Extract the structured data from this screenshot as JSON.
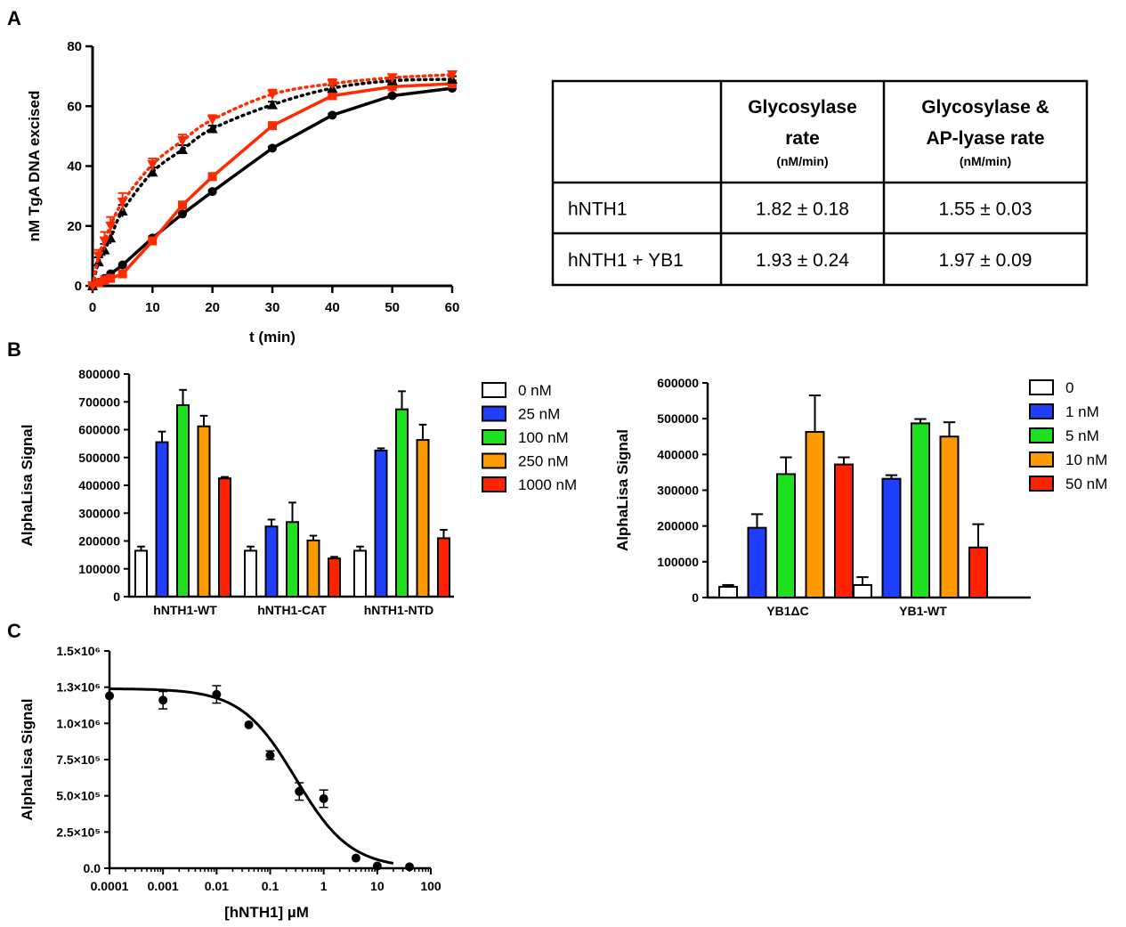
{
  "panels": {
    "a": "A",
    "b": "B",
    "c": "C"
  },
  "chart_data": [
    {
      "id": "A",
      "type": "line",
      "xlabel": "t (min)",
      "ylabel": "nM TgA DNA excised",
      "xlim": [
        0,
        60
      ],
      "ylim": [
        0,
        80
      ],
      "xticks": [
        "0",
        "10",
        "20",
        "30",
        "40",
        "50",
        "60"
      ],
      "yticks": [
        "0",
        "20",
        "40",
        "60",
        "80"
      ],
      "series": [
        {
          "color": "#000000",
          "marker": "circle",
          "style": "solid",
          "x": [
            0,
            1,
            2,
            3,
            5,
            10,
            15,
            20,
            30,
            40,
            50,
            60
          ],
          "y": [
            0,
            1.2,
            2.5,
            4,
            7,
            16,
            24,
            31.5,
            46,
            57,
            63.5,
            66
          ],
          "err": [
            0,
            0,
            0,
            0,
            0,
            0.5,
            0.5,
            0.5,
            0.5,
            0.5,
            0.5,
            0.5
          ]
        },
        {
          "color": "#ff2a00",
          "marker": "square",
          "style": "solid",
          "x": [
            0,
            1,
            2,
            3,
            5,
            10,
            15,
            20,
            30,
            40,
            50,
            60
          ],
          "y": [
            0,
            1,
            2,
            2.5,
            4,
            15,
            27,
            36.5,
            53.5,
            63.5,
            66.5,
            67.5
          ],
          "err": [
            0,
            0.5,
            0.5,
            0.5,
            1,
            1,
            1,
            1,
            1,
            1,
            1,
            1
          ]
        },
        {
          "color": "#000000",
          "marker": "triangle",
          "style": "dotted",
          "x": [
            0,
            1,
            2,
            3,
            5,
            10,
            15,
            20,
            30,
            40,
            50,
            60
          ],
          "y": [
            0,
            8,
            12,
            16,
            25,
            38,
            45.5,
            52.5,
            60.5,
            66,
            68.5,
            69
          ],
          "err": [
            0,
            1.5,
            2,
            2,
            2,
            1.5,
            1.5,
            1,
            1,
            1,
            1,
            1
          ]
        },
        {
          "color": "#ff2a00",
          "marker": "down-triangle",
          "style": "dotted",
          "x": [
            0,
            1,
            2,
            3,
            5,
            10,
            15,
            20,
            30,
            40,
            50,
            60
          ],
          "y": [
            0,
            10,
            15,
            20,
            28,
            40.5,
            48.5,
            55.5,
            64,
            67.5,
            69.5,
            70.5
          ],
          "err": [
            0,
            2,
            3,
            3,
            3,
            2,
            2,
            1.5,
            1.5,
            1.5,
            1,
            1
          ]
        }
      ]
    },
    {
      "id": "A-table",
      "type": "table",
      "columns": [
        "",
        "Glycosylase rate",
        "Glycosylase & AP-lyase rate"
      ],
      "header_lines": [
        [
          "Glycosylase",
          "rate"
        ],
        [
          "Glycosylase &",
          "AP-lyase rate"
        ]
      ],
      "units": [
        "(nM/min)",
        "(nM/min)"
      ],
      "rows": [
        [
          "hNTH1",
          "1.82 ± 0.18",
          "1.55 ± 0.03"
        ],
        [
          "hNTH1 + YB1",
          "1.93 ± 0.24",
          "1.97 ± 0.09"
        ]
      ]
    },
    {
      "id": "B-left",
      "type": "bar",
      "ylabel": "AlphaLisa Signal",
      "ylim": [
        0,
        800000
      ],
      "yticks": [
        "0",
        "100000",
        "200000",
        "300000",
        "400000",
        "500000",
        "600000",
        "700000",
        "800000"
      ],
      "categories": [
        "hNTH1-WT",
        "hNTH1-CAT",
        "hNTH1-NTD"
      ],
      "legend_position": "right",
      "series": [
        {
          "name": "0 nM",
          "color": "#ffffff",
          "values": [
            165000,
            165000,
            165000
          ],
          "err": [
            15000,
            15000,
            15000
          ]
        },
        {
          "name": "25 nM",
          "color": "#1f3fff",
          "values": [
            555000,
            252000,
            525000
          ],
          "err": [
            38000,
            25000,
            8000
          ]
        },
        {
          "name": "100 nM",
          "color": "#1fe01f",
          "values": [
            688000,
            268000,
            673000
          ],
          "err": [
            55000,
            70000,
            65000
          ]
        },
        {
          "name": "250 nM",
          "color": "#ff9900",
          "values": [
            612000,
            202000,
            563000
          ],
          "err": [
            38000,
            17000,
            55000
          ]
        },
        {
          "name": "1000 nM",
          "color": "#ff2200",
          "values": [
            425000,
            137000,
            210000
          ],
          "err": [
            5000,
            6000,
            30000
          ]
        }
      ]
    },
    {
      "id": "B-right",
      "type": "bar",
      "ylabel": "AlphaLisa Signal",
      "ylim": [
        0,
        600000
      ],
      "yticks": [
        "0",
        "100000",
        "200000",
        "300000",
        "400000",
        "500000",
        "600000"
      ],
      "categories": [
        "YB1ΔC",
        "YB1-WT"
      ],
      "legend_position": "right",
      "series": [
        {
          "name": "0",
          "color": "#ffffff",
          "values": [
            30000,
            35000
          ],
          "err": [
            5000,
            22000
          ]
        },
        {
          "name": "1 nM",
          "color": "#1f3fff",
          "values": [
            195000,
            332000
          ],
          "err": [
            38000,
            10000
          ]
        },
        {
          "name": "5 nM",
          "color": "#1fe01f",
          "values": [
            345000,
            487000
          ],
          "err": [
            47000,
            12000
          ]
        },
        {
          "name": "10 nM",
          "color": "#ff9900",
          "values": [
            463000,
            450000
          ],
          "err": [
            102000,
            40000
          ]
        },
        {
          "name": "50 nM",
          "color": "#ff2200",
          "values": [
            372000,
            140000
          ],
          "err": [
            20000,
            65000
          ]
        }
      ]
    },
    {
      "id": "C",
      "type": "scatter",
      "xscale": "log",
      "xlabel": "[hNTH1] µM",
      "ylabel": "AlphaLisa Signal",
      "xlim": [
        0.0001,
        100
      ],
      "ylim": [
        0,
        1500000
      ],
      "xticks": [
        "0.0001",
        "0.001",
        "0.01",
        "0.1",
        "1",
        "10",
        "100"
      ],
      "yticks": [
        "0.0",
        "2.5×10⁵",
        "5.0×10⁵",
        "7.5×10⁵",
        "1.0×10⁶",
        "1.3×10⁶",
        "1.5×10⁶"
      ],
      "x": [
        0.0001,
        0.001,
        0.01,
        0.04,
        0.1,
        0.35,
        1,
        4,
        10,
        40
      ],
      "y": [
        1190000,
        1160000,
        1200000,
        990000,
        780000,
        530000,
        480000,
        70000,
        15000,
        10000
      ],
      "err": [
        0,
        60000,
        60000,
        0,
        30000,
        60000,
        60000,
        0,
        0,
        0
      ],
      "fit": {
        "type": "sigmoid",
        "top": 1240000,
        "bottom": 0,
        "ic50": 0.3,
        "hill": 0.85
      }
    }
  ]
}
